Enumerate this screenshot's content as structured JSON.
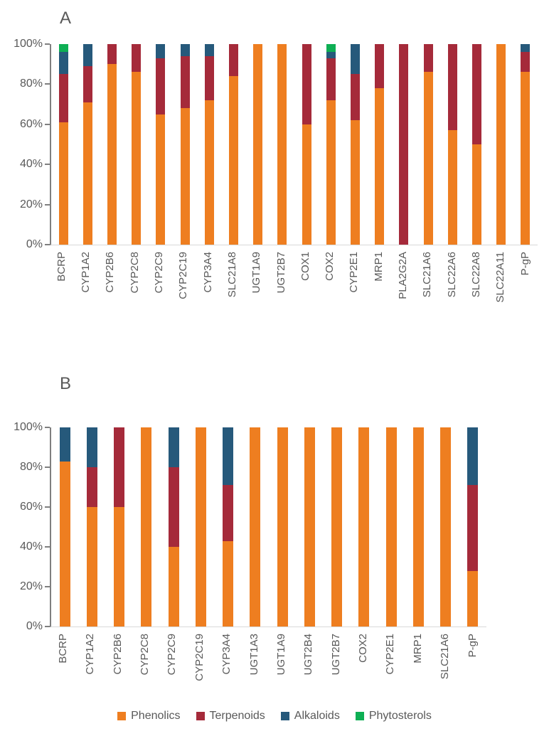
{
  "page": {
    "background": "#FFFFFF",
    "text_color": "#595959",
    "axis_line_color": "#7F7F7F",
    "baseline_color": "#D9D9D9"
  },
  "chart_data": [
    {
      "type": "bar",
      "stacked": true,
      "panel_label": "A",
      "unit": "percent",
      "ylim": [
        0,
        100
      ],
      "grid": false,
      "yticks": [
        "0%",
        "20%",
        "40%",
        "60%",
        "80%",
        "100%"
      ],
      "categories": [
        "BCRP",
        "CYP1A2",
        "CYP2B6",
        "CYP2C8",
        "CYP2C9",
        "CYP2C19",
        "CYP3A4",
        "SLC21A8",
        "UGT1A9",
        "UGT2B7",
        "COX1",
        "COX2",
        "CYP2E1",
        "MRP1",
        "PLA2G2A",
        "SLC21A6",
        "SLC22A6",
        "SLC22A8",
        "SLC22A11",
        "P-gP"
      ],
      "series": [
        {
          "name": "Phenolics",
          "color": "#EE7E20",
          "values": [
            61,
            71,
            90,
            86,
            65,
            68,
            72,
            84,
            100,
            100,
            60,
            72,
            62,
            78,
            0,
            86,
            57,
            50,
            100,
            86
          ]
        },
        {
          "name": "Terpenoids",
          "color": "#A52A3A",
          "values": [
            24,
            18,
            10,
            14,
            28,
            26,
            22,
            16,
            0,
            0,
            40,
            21,
            23,
            22,
            100,
            14,
            43,
            50,
            0,
            10
          ]
        },
        {
          "name": "Alkaloids",
          "color": "#26597B",
          "values": [
            11,
            11,
            0,
            0,
            7,
            6,
            6,
            0,
            0,
            0,
            0,
            3,
            15,
            0,
            0,
            0,
            0,
            0,
            0,
            4
          ]
        },
        {
          "name": "Phytosterols",
          "color": "#0EAF54",
          "values": [
            4,
            0,
            0,
            0,
            0,
            0,
            0,
            0,
            0,
            0,
            0,
            4,
            0,
            0,
            0,
            0,
            0,
            0,
            0,
            0
          ]
        }
      ]
    },
    {
      "type": "bar",
      "stacked": true,
      "panel_label": "B",
      "unit": "percent",
      "ylim": [
        0,
        100
      ],
      "grid": false,
      "yticks": [
        "0%",
        "20%",
        "40%",
        "60%",
        "80%",
        "100%"
      ],
      "categories": [
        "BCRP",
        "CYP1A2",
        "CYP2B6",
        "CYP2C8",
        "CYP2C9",
        "CYP2C19",
        "CYP3A4",
        "UGT1A3",
        "UGT1A9",
        "UGT2B4",
        "UGT2B7",
        "COX2",
        "CYP2E1",
        "MRP1",
        "SLC21A6",
        "P-gP"
      ],
      "series": [
        {
          "name": "Phenolics",
          "color": "#EE7E20",
          "values": [
            83,
            60,
            60,
            100,
            40,
            100,
            43,
            100,
            100,
            100,
            100,
            100,
            100,
            100,
            100,
            28
          ]
        },
        {
          "name": "Terpenoids",
          "color": "#A52A3A",
          "values": [
            0,
            20,
            40,
            0,
            40,
            0,
            28,
            0,
            0,
            0,
            0,
            0,
            0,
            0,
            0,
            43
          ]
        },
        {
          "name": "Alkaloids",
          "color": "#26597B",
          "values": [
            17,
            20,
            0,
            0,
            20,
            0,
            29,
            0,
            0,
            0,
            0,
            0,
            0,
            0,
            0,
            29
          ]
        },
        {
          "name": "Phytosterols",
          "color": "#0EAF54",
          "values": [
            0,
            0,
            0,
            0,
            0,
            0,
            0,
            0,
            0,
            0,
            0,
            0,
            0,
            0,
            0,
            0
          ]
        }
      ]
    }
  ],
  "legend": {
    "position": "bottom",
    "items": [
      {
        "label": "Phenolics",
        "color": "#EE7E20"
      },
      {
        "label": "Terpenoids",
        "color": "#A52A3A"
      },
      {
        "label": "Alkaloids",
        "color": "#26597B"
      },
      {
        "label": "Phytosterols",
        "color": "#0EAF54"
      }
    ]
  }
}
